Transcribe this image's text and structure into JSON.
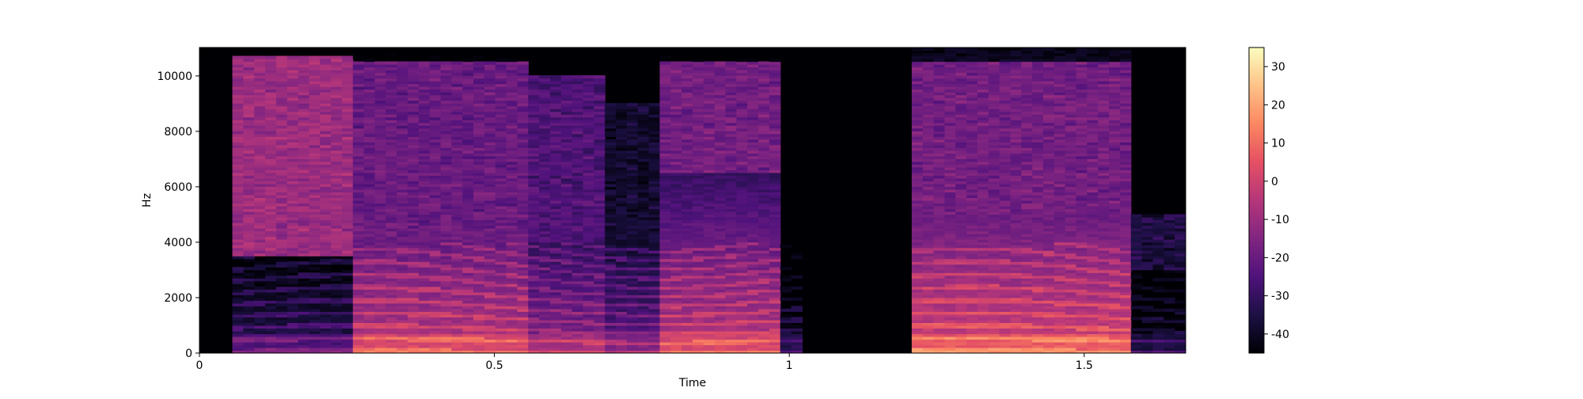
{
  "chart_data": {
    "type": "heatmap",
    "title": "",
    "xlabel": "Time",
    "ylabel": "Hz",
    "xlim": [
      0,
      1.672
    ],
    "ylim": [
      0,
      11025
    ],
    "x_ticks": [
      {
        "value": 0,
        "label": "0"
      },
      {
        "value": 0.5,
        "label": "0.5"
      },
      {
        "value": 1.0,
        "label": "1"
      },
      {
        "value": 1.5,
        "label": "1.5"
      }
    ],
    "y_ticks": [
      {
        "value": 0,
        "label": "0"
      },
      {
        "value": 2000,
        "label": "2000"
      },
      {
        "value": 4000,
        "label": "4000"
      },
      {
        "value": 6000,
        "label": "6000"
      },
      {
        "value": 8000,
        "label": "8000"
      },
      {
        "value": 10000,
        "label": "10000"
      }
    ],
    "colorbar": {
      "colormap": "magma",
      "range": [
        -45,
        35
      ],
      "ticks": [
        {
          "value": 30,
          "label": "30"
        },
        {
          "value": 20,
          "label": "20"
        },
        {
          "value": 10,
          "label": "10"
        },
        {
          "value": 0,
          "label": "0"
        },
        {
          "value": -10,
          "label": "-10"
        },
        {
          "value": -20,
          "label": "-20"
        },
        {
          "value": -30,
          "label": "-30"
        },
        {
          "value": -40,
          "label": "-40"
        }
      ]
    },
    "segments": [
      {
        "t_start": 0.0,
        "t_end": 0.05,
        "level": -45,
        "hf_level": -45,
        "hf_band": [
          0,
          0
        ]
      },
      {
        "t_start": 0.05,
        "t_end": 0.26,
        "level": -22,
        "hf_level": -10,
        "hf_band": [
          3500,
          10700
        ]
      },
      {
        "t_start": 0.26,
        "t_end": 0.55,
        "level": 5,
        "hf_level": -20,
        "hf_band": [
          4000,
          10500
        ]
      },
      {
        "t_start": 0.55,
        "t_end": 0.68,
        "level": -5,
        "hf_level": -25,
        "hf_band": [
          4000,
          10000
        ]
      },
      {
        "t_start": 0.68,
        "t_end": 0.78,
        "level": -12,
        "hf_level": -38,
        "hf_band": [
          4000,
          9000
        ]
      },
      {
        "t_start": 0.78,
        "t_end": 0.99,
        "level": 5,
        "hf_level": -18,
        "hf_band": [
          6500,
          10500
        ]
      },
      {
        "t_start": 0.99,
        "t_end": 1.03,
        "level": -30,
        "hf_level": -45,
        "hf_band": [
          0,
          0
        ]
      },
      {
        "t_start": 1.03,
        "t_end": 1.21,
        "level": -45,
        "hf_level": -45,
        "hf_band": [
          0,
          0
        ]
      },
      {
        "t_start": 1.21,
        "t_end": 1.57,
        "level": 10,
        "hf_level": -18,
        "hf_band": [
          5000,
          10500
        ]
      },
      {
        "t_start": 1.57,
        "t_end": 1.672,
        "level": -32,
        "hf_level": -35,
        "hf_band": [
          3000,
          5000
        ]
      }
    ]
  }
}
